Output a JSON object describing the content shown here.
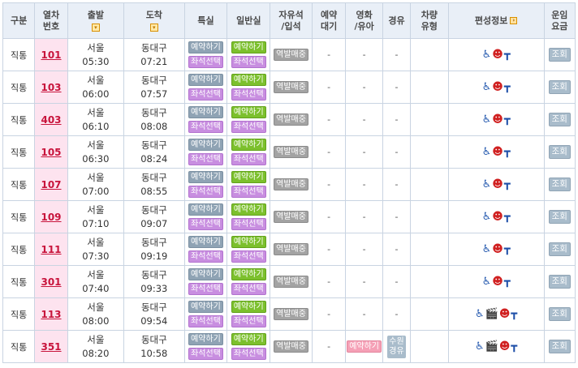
{
  "headers": {
    "type": "구분",
    "train_no": "열차\n번호",
    "departure": "출발",
    "arrival": "도착",
    "first_class": "특실",
    "standard": "일반실",
    "free_seat": "자유석\n/입석",
    "waitlist": "예약\n대기",
    "family": "영화\n/유아",
    "via": "경유",
    "car_type": "차량\n유형",
    "formation": "편성정보",
    "fare": "운임\n요금"
  },
  "labels": {
    "reserve": "예약하기",
    "seat_select": "좌석선택",
    "station_sale": "역발매중",
    "view": "조회",
    "dash": "-"
  },
  "rows": [
    {
      "type": "직통",
      "train": "101",
      "dep_station": "서울",
      "dep_time": "05:30",
      "arr_station": "동대구",
      "arr_time": "07:21",
      "standard_style": "green",
      "family": "-",
      "via": "-",
      "icons": [
        "wheelchair",
        "nurse",
        "table"
      ]
    },
    {
      "type": "직통",
      "train": "103",
      "dep_station": "서울",
      "dep_time": "06:00",
      "arr_station": "동대구",
      "arr_time": "07:57",
      "standard_style": "green",
      "family": "-",
      "via": "-",
      "icons": [
        "wheelchair",
        "nurse",
        "table"
      ]
    },
    {
      "type": "직통",
      "train": "403",
      "dep_station": "서울",
      "dep_time": "06:10",
      "arr_station": "동대구",
      "arr_time": "08:08",
      "standard_style": "green",
      "family": "-",
      "via": "-",
      "icons": [
        "wheelchair",
        "nurse",
        "table"
      ]
    },
    {
      "type": "직통",
      "train": "105",
      "dep_station": "서울",
      "dep_time": "06:30",
      "arr_station": "동대구",
      "arr_time": "08:24",
      "standard_style": "green",
      "family": "-",
      "via": "-",
      "icons": [
        "wheelchair",
        "nurse",
        "table"
      ]
    },
    {
      "type": "직통",
      "train": "107",
      "dep_station": "서울",
      "dep_time": "07:00",
      "arr_station": "동대구",
      "arr_time": "08:55",
      "standard_style": "green",
      "family": "-",
      "via": "-",
      "icons": [
        "wheelchair",
        "nurse",
        "table"
      ]
    },
    {
      "type": "직통",
      "train": "109",
      "dep_station": "서울",
      "dep_time": "07:10",
      "arr_station": "동대구",
      "arr_time": "09:07",
      "standard_style": "green",
      "family": "-",
      "via": "-",
      "icons": [
        "wheelchair",
        "nurse",
        "table"
      ]
    },
    {
      "type": "직통",
      "train": "111",
      "dep_station": "서울",
      "dep_time": "07:30",
      "arr_station": "동대구",
      "arr_time": "09:19",
      "standard_style": "green",
      "family": "-",
      "via": "-",
      "icons": [
        "wheelchair",
        "nurse",
        "table"
      ]
    },
    {
      "type": "직통",
      "train": "301",
      "dep_station": "서울",
      "dep_time": "07:40",
      "arr_station": "동대구",
      "arr_time": "09:33",
      "standard_style": "green",
      "family": "-",
      "via": "-",
      "icons": [
        "wheelchair",
        "nurse",
        "table"
      ]
    },
    {
      "type": "직통",
      "train": "113",
      "dep_station": "서울",
      "dep_time": "08:00",
      "arr_station": "동대구",
      "arr_time": "09:54",
      "standard_style": "green",
      "family": "-",
      "via": "-",
      "icons": [
        "wheelchair",
        "film",
        "nurse",
        "table"
      ]
    },
    {
      "type": "직통",
      "train": "351",
      "dep_station": "서울",
      "dep_time": "08:20",
      "arr_station": "동대구",
      "arr_time": "10:58",
      "standard_style": "green",
      "family": "예약하기",
      "via": "수원\n경유",
      "icons": [
        "wheelchair",
        "film",
        "nurse",
        "table"
      ]
    }
  ],
  "colors": {
    "header_bg": "#e9eff7",
    "train_cell_bg": "#fde3ef",
    "train_link": "#c8143c",
    "reserve_gray": "#8fa3b4",
    "reserve_green": "#7cc02d",
    "seat_purple": "#c88ee0",
    "station_gray": "#a3a3a3",
    "family_pink": "#f5a0b6"
  }
}
